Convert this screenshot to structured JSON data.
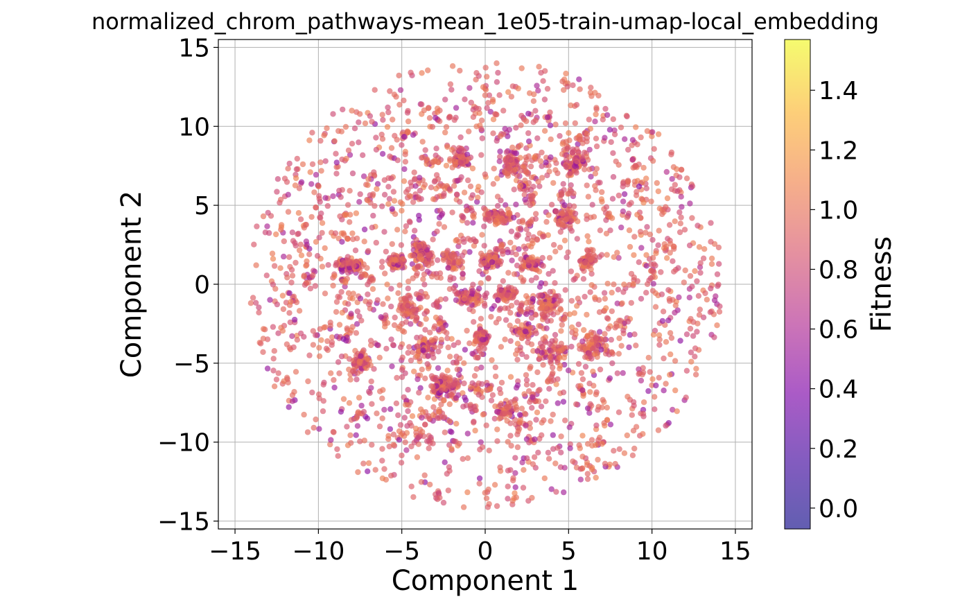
{
  "chart_data": {
    "type": "scatter",
    "title": "normalized_chrom_pathways-mean_1e05-train-umap-local_embedding",
    "xlabel": "Component 1",
    "ylabel": "Component 2",
    "xlim": [
      -16,
      16
    ],
    "ylim": [
      -15.5,
      15.5
    ],
    "xticks": [
      -15,
      -10,
      -5,
      0,
      5,
      10,
      15
    ],
    "yticks": [
      -15,
      -10,
      -5,
      0,
      5,
      10,
      15
    ],
    "xtick_labels": [
      "−15",
      "−10",
      "−5",
      "0",
      "5",
      "10",
      "15"
    ],
    "ytick_labels": [
      "−15",
      "−10",
      "−5",
      "0",
      "5",
      "10",
      "15"
    ],
    "grid": true,
    "colormap": "plasma",
    "point_alpha": 0.65,
    "colorbar": {
      "label": "Fitness",
      "range": [
        -0.07,
        1.57
      ],
      "ticks": [
        0.0,
        0.2,
        0.4,
        0.6,
        0.8,
        1.0,
        1.2,
        1.4
      ],
      "tick_labels": [
        "0.0",
        "0.2",
        "0.4",
        "0.6",
        "0.8",
        "1.0",
        "1.2",
        "1.4"
      ]
    },
    "embedding_region": {
      "shape": "disk",
      "center": [
        0,
        0
      ],
      "radius": 14.2
    },
    "fitness_distribution": {
      "typical": 0.95,
      "range": [
        0.45,
        1.1
      ]
    },
    "dense_clusters": [
      {
        "x": -8.2,
        "y": 1.2
      },
      {
        "x": -5.3,
        "y": 1.4
      },
      {
        "x": -3.9,
        "y": 2.0
      },
      {
        "x": -2.0,
        "y": 1.5
      },
      {
        "x": 0.3,
        "y": 1.5
      },
      {
        "x": 0.8,
        "y": 4.3
      },
      {
        "x": 2.8,
        "y": 1.3
      },
      {
        "x": 4.8,
        "y": 4.2
      },
      {
        "x": -1.5,
        "y": 7.9
      },
      {
        "x": 1.6,
        "y": 7.6
      },
      {
        "x": 5.4,
        "y": 7.7
      },
      {
        "x": 6.2,
        "y": 1.5
      },
      {
        "x": -7.5,
        "y": -4.8
      },
      {
        "x": -3.5,
        "y": -4.0
      },
      {
        "x": -0.2,
        "y": -3.4
      },
      {
        "x": 2.4,
        "y": -3.0
      },
      {
        "x": 4.2,
        "y": -4.2
      },
      {
        "x": 6.4,
        "y": -3.9
      },
      {
        "x": -1.0,
        "y": -0.8
      },
      {
        "x": 1.3,
        "y": -0.6
      },
      {
        "x": -4.6,
        "y": -1.5
      },
      {
        "x": 3.8,
        "y": -1.2
      },
      {
        "x": -2.5,
        "y": -6.5
      },
      {
        "x": 1.2,
        "y": -8.0
      }
    ]
  }
}
